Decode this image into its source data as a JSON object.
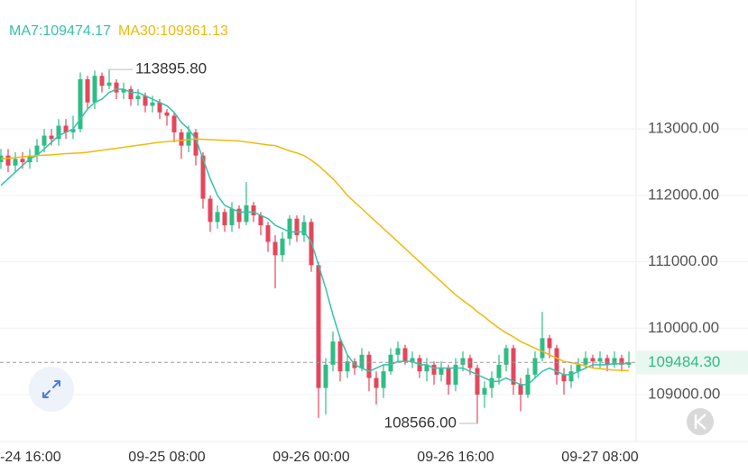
{
  "chart_data": {
    "type": "candlestick",
    "categories": [
      null,
      null,
      null,
      "09-24 16:00",
      null,
      null,
      null,
      null,
      null,
      null,
      null,
      null,
      null,
      null,
      null,
      null,
      null,
      null,
      null,
      null,
      null,
      null,
      null,
      "09-25 08:00",
      null,
      null,
      null,
      null,
      null,
      null,
      null,
      null,
      null,
      null,
      null,
      null,
      null,
      null,
      null,
      null,
      null,
      null,
      null,
      "09-26 00:00",
      null,
      null,
      null,
      null,
      null,
      null,
      null,
      null,
      null,
      null,
      null,
      null,
      null,
      null,
      null,
      null,
      null,
      null,
      null,
      "09-26 16:00",
      null,
      null,
      null,
      null,
      null,
      null,
      null,
      null,
      null,
      null,
      null,
      null,
      null,
      null,
      null,
      null,
      null,
      null,
      null,
      "09-27 08:00",
      null,
      null,
      null,
      null
    ],
    "open": [
      112500,
      112600,
      112450,
      112550,
      112500,
      112600,
      112750,
      112900,
      112850,
      113050,
      112950,
      113000,
      113750,
      113400,
      113800,
      113650,
      113700,
      113550,
      113600,
      113450,
      113500,
      113350,
      113400,
      113250,
      113200,
      112950,
      112750,
      112950,
      112600,
      111950,
      111600,
      111750,
      111550,
      111800,
      111600,
      111850,
      111700,
      111550,
      111300,
      111100,
      111350,
      111650,
      111400,
      111600,
      110950,
      109100,
      109450,
      109800,
      109350,
      109500,
      109400,
      109600,
      109250,
      109100,
      109350,
      109600,
      109700,
      109500,
      109550,
      109350,
      109450,
      109300,
      109400,
      109150,
      109450,
      109550,
      109400,
      109000,
      109100,
      109250,
      109450,
      109700,
      109150,
      109000,
      109300,
      109550,
      109850,
      109700,
      109300,
      109200,
      109350,
      109450,
      109550,
      109500,
      109550,
      109450,
      109550,
      109450
    ],
    "high": [
      112700,
      112700,
      112650,
      112650,
      112700,
      112850,
      113000,
      113000,
      113150,
      113150,
      113200,
      113850,
      113800,
      113880,
      113850,
      113895.8,
      113750,
      113700,
      113650,
      113600,
      113550,
      113500,
      113450,
      113300,
      113250,
      113000,
      113050,
      113000,
      112650,
      112000,
      111850,
      111800,
      111900,
      111850,
      112200,
      111900,
      111750,
      111600,
      111400,
      111450,
      111700,
      111700,
      111700,
      111650,
      111000,
      109550,
      109950,
      109850,
      109600,
      109550,
      109700,
      109650,
      109350,
      109450,
      109700,
      109800,
      109750,
      109650,
      109600,
      109550,
      109500,
      109500,
      109450,
      109550,
      109650,
      109600,
      109450,
      109200,
      109350,
      109600,
      109750,
      109750,
      109250,
      109400,
      109650,
      110250,
      109900,
      109750,
      109400,
      109450,
      109550,
      109650,
      109600,
      109650,
      109600,
      109650,
      109600,
      109650
    ],
    "low": [
      112400,
      112350,
      112350,
      112400,
      112400,
      112500,
      112650,
      112750,
      112750,
      112850,
      112850,
      112950,
      113300,
      113300,
      113550,
      113600,
      113450,
      113450,
      113350,
      113350,
      113250,
      113250,
      113150,
      113050,
      112800,
      112550,
      112650,
      112450,
      111800,
      111450,
      111500,
      111450,
      111450,
      111500,
      111550,
      111600,
      111400,
      111150,
      110600,
      111000,
      111250,
      111300,
      111300,
      110850,
      108650,
      108700,
      109350,
      109200,
      109250,
      109300,
      109350,
      109050,
      108850,
      108950,
      109300,
      109500,
      109450,
      109400,
      109250,
      109200,
      109150,
      109200,
      109000,
      109050,
      109350,
      109300,
      108566,
      108800,
      108950,
      109150,
      109350,
      109000,
      108750,
      108950,
      109250,
      109500,
      109550,
      109150,
      109000,
      109100,
      109250,
      109400,
      109400,
      109400,
      109350,
      109400,
      109350,
      109400
    ],
    "close": [
      112600,
      112450,
      112550,
      112500,
      112600,
      112750,
      112900,
      112850,
      113050,
      112950,
      113000,
      113750,
      113400,
      113800,
      113650,
      113700,
      113550,
      113600,
      113450,
      113500,
      113350,
      113400,
      113250,
      113200,
      112950,
      112750,
      112950,
      112600,
      111950,
      111600,
      111750,
      111550,
      111800,
      111600,
      111850,
      111700,
      111550,
      111300,
      111100,
      111350,
      111650,
      111400,
      111600,
      110950,
      109100,
      109450,
      109800,
      109350,
      109500,
      109400,
      109600,
      109250,
      109100,
      109350,
      109600,
      109700,
      109500,
      109550,
      109350,
      109450,
      109300,
      109400,
      109150,
      109450,
      109550,
      109400,
      109000,
      109100,
      109250,
      109450,
      109700,
      109150,
      109000,
      109300,
      109550,
      109850,
      109700,
      109300,
      109200,
      109350,
      109450,
      109550,
      109500,
      109550,
      109450,
      109550,
      109450,
      109484.3
    ],
    "up_color": "#2ebd85",
    "down_color": "#e5465b",
    "series": [
      {
        "name": "MA7:109474.17",
        "color": "#35c2a8",
        "values": [
          112150,
          112250,
          112350,
          112450,
          112550,
          112600,
          112700,
          112800,
          112900,
          112950,
          113000,
          113150,
          113300,
          113400,
          113450,
          113550,
          113600,
          113600,
          113550,
          113550,
          113500,
          113450,
          113400,
          113350,
          113250,
          113100,
          113000,
          112850,
          112550,
          112250,
          112000,
          111850,
          111800,
          111750,
          111750,
          111750,
          111700,
          111650,
          111550,
          111500,
          111450,
          111450,
          111450,
          111300,
          110950,
          110600,
          110200,
          109850,
          109600,
          109450,
          109400,
          109350,
          109400,
          109450,
          109450,
          109500,
          109500,
          109500,
          109450,
          109450,
          109400,
          109400,
          109400,
          109400,
          109400,
          109350,
          109300,
          109250,
          109200,
          109200,
          109250,
          109200,
          109150,
          109150,
          109250,
          109350,
          109400,
          109350,
          109300,
          109300,
          109350,
          109400,
          109450,
          109450,
          109450,
          109470,
          109460,
          109474.17
        ]
      },
      {
        "name": "MA30:109361.13",
        "color": "#f0b90b",
        "values": [
          112550,
          112560,
          112570,
          112580,
          112590,
          112600,
          112605,
          112610,
          112620,
          112630,
          112635,
          112640,
          112650,
          112665,
          112680,
          112695,
          112710,
          112725,
          112740,
          112755,
          112770,
          112785,
          112800,
          112810,
          112820,
          112830,
          112840,
          112850,
          112845,
          112840,
          112835,
          112830,
          112825,
          112820,
          112805,
          112790,
          112775,
          112760,
          112750,
          112710,
          112670,
          112640,
          112600,
          112530,
          112450,
          112350,
          112250,
          112130,
          112000,
          111900,
          111800,
          111700,
          111600,
          111500,
          111400,
          111300,
          111200,
          111100,
          111000,
          110900,
          110800,
          110700,
          110600,
          110500,
          110420,
          110340,
          110250,
          110170,
          110080,
          110000,
          109930,
          109870,
          109800,
          109750,
          109700,
          109650,
          109600,
          109550,
          109500,
          109480,
          109460,
          109430,
          109400,
          109390,
          109380,
          109370,
          109365,
          109361.13
        ]
      }
    ],
    "high_label": "113895.80",
    "low_label": "108566.00",
    "last_label": "109484.30",
    "ylim": [
      108430,
      114780
    ],
    "yticks": [
      {
        "value": 109000,
        "label": "109000.00"
      },
      {
        "value": 110000,
        "label": "110000.00"
      },
      {
        "value": 111000,
        "label": "111000.00"
      },
      {
        "value": 112000,
        "label": "112000.00"
      },
      {
        "value": 113000,
        "label": "113000.00"
      }
    ],
    "grid": true
  }
}
